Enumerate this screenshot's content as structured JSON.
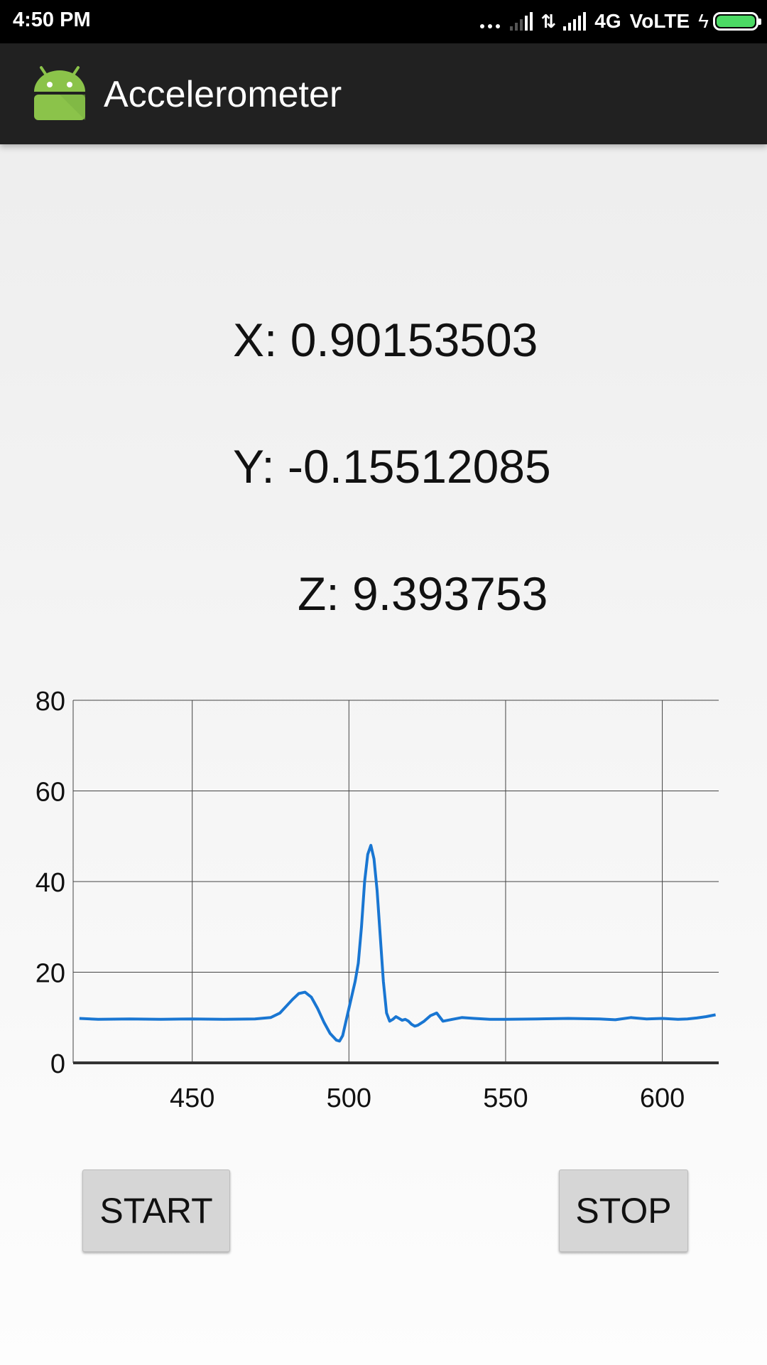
{
  "status_bar": {
    "time": "4:50 PM",
    "network": "4G",
    "volte": "VoLTE",
    "battery_level": 1.0,
    "battery_color": "#4cd964"
  },
  "app_bar": {
    "title": "Accelerometer",
    "icon": "android-icon",
    "icon_color": "#8bc34a"
  },
  "readings": {
    "x": "X: 0.90153503",
    "y": "Y: -0.15512085",
    "z": "Z: 9.393753"
  },
  "chart_data": {
    "type": "line",
    "xlim": [
      412,
      618
    ],
    "ylim": [
      0,
      80
    ],
    "x_ticks": [
      450,
      500,
      550,
      600
    ],
    "y_ticks": [
      0,
      20,
      40,
      60,
      80
    ],
    "grid": true,
    "series": [
      {
        "color": "#1976d2",
        "x": [
          414,
          420,
          430,
          440,
          450,
          460,
          470,
          475,
          478,
          480,
          482,
          484,
          486,
          488,
          490,
          492,
          494,
          496,
          497,
          498,
          499,
          500,
          501,
          502,
          503,
          504,
          505,
          506,
          507,
          508,
          509,
          510,
          511,
          512,
          513,
          514,
          515,
          516,
          517,
          518,
          519,
          520,
          521,
          522,
          524,
          526,
          528,
          530,
          533,
          536,
          540,
          545,
          550,
          560,
          570,
          580,
          585,
          590,
          595,
          600,
          605,
          608,
          611,
          614,
          617
        ],
        "y": [
          9.8,
          9.6,
          9.7,
          9.6,
          9.7,
          9.6,
          9.7,
          10,
          11,
          12.5,
          14,
          15.3,
          15.6,
          14.5,
          12,
          9,
          6.5,
          5,
          4.8,
          6,
          9,
          12,
          15,
          18,
          22,
          30,
          40,
          46,
          48,
          45,
          38,
          28,
          18,
          11,
          9.2,
          9.6,
          10.2,
          9.8,
          9.4,
          9.6,
          9.2,
          8.5,
          8.1,
          8.3,
          9.2,
          10.4,
          11,
          9.2,
          9.6,
          10,
          9.8,
          9.6,
          9.6,
          9.7,
          9.8,
          9.7,
          9.5,
          10,
          9.7,
          9.8,
          9.6,
          9.7,
          9.9,
          10.2,
          10.6
        ]
      }
    ]
  },
  "buttons": {
    "start_label": "START",
    "stop_label": "STOP"
  }
}
